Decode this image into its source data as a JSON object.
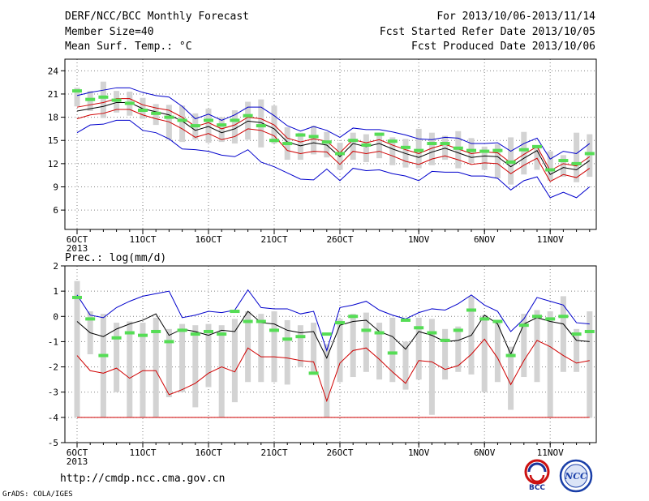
{
  "header": {
    "title": "DERF/NCC/BCC Monthly Forecast",
    "member_size": "Member Size=40",
    "variable": "Mean Surf. Temp.: °C",
    "forecast_period": "For 2013/10/06-2013/11/14",
    "start_date": "Fcst Started Refer Date 2013/10/05",
    "produced_date": "Fcst Produced Date 2013/10/06"
  },
  "footer": {
    "url": "http://cmdp.ncc.cma.gov.cn",
    "credit": "GrADS: COLA/IGES",
    "logo_left_text": "BCC",
    "logo_right_text": "NCC"
  },
  "colors": {
    "upper": "#0000cc",
    "lower": "#d00000",
    "ensemble": "#000000",
    "box": "#d3d3d3",
    "marker": "#55dd55",
    "grid": "#808080"
  },
  "chart_data": [
    {
      "type": "line",
      "name": "temperature",
      "ylabel": "",
      "ylim": [
        3.5,
        25.5
      ],
      "yticks": [
        6,
        9,
        12,
        15,
        18,
        21,
        24
      ],
      "x_tick_labels": [
        {
          "day": 1,
          "label": "6OCT",
          "sub": "2013"
        },
        {
          "day": 6,
          "label": "11OCT"
        },
        {
          "day": 11,
          "label": "16OCT"
        },
        {
          "day": 16,
          "label": "21OCT"
        },
        {
          "day": 21,
          "label": "26OCT"
        },
        {
          "day": 27,
          "label": "1NOV"
        },
        {
          "day": 32,
          "label": "6NOV"
        },
        {
          "day": 37,
          "label": "11NOV"
        }
      ],
      "x": [
        1,
        2,
        3,
        4,
        5,
        6,
        7,
        8,
        9,
        10,
        11,
        12,
        13,
        14,
        15,
        16,
        17,
        18,
        19,
        20,
        21,
        22,
        23,
        24,
        25,
        26,
        27,
        28,
        29,
        30,
        31,
        32,
        33,
        34,
        35,
        36,
        37,
        38,
        39,
        40
      ],
      "series": {
        "upper": [
          20.8,
          21.2,
          21.5,
          21.8,
          21.8,
          21.2,
          20.8,
          20.6,
          19.4,
          17.8,
          18.4,
          17.6,
          18.3,
          19.3,
          19.3,
          18.2,
          16.9,
          16.2,
          16.8,
          16.3,
          15.4,
          16.6,
          16.4,
          16.4,
          16.1,
          15.7,
          15.2,
          15.1,
          15.4,
          15.3,
          14.6,
          14.6,
          14.7,
          13.6,
          14.6,
          15.3,
          12.6,
          13.6,
          13.3,
          14.6
        ],
        "ensemble": [
          18.8,
          19.1,
          19.4,
          19.9,
          19.9,
          19.1,
          18.7,
          18.3,
          17.5,
          16.3,
          16.8,
          16.0,
          16.5,
          17.5,
          17.3,
          16.5,
          14.8,
          14.3,
          14.7,
          14.4,
          12.9,
          14.6,
          14.2,
          14.6,
          13.9,
          13.3,
          12.8,
          13.5,
          14.0,
          13.4,
          12.8,
          13.0,
          12.9,
          11.6,
          12.7,
          13.7,
          10.6,
          11.5,
          11.2,
          12.4
        ],
        "red_upper": [
          19.3,
          19.6,
          19.9,
          20.4,
          20.4,
          19.6,
          19.2,
          18.9,
          18.0,
          16.8,
          17.3,
          16.5,
          17.0,
          18.0,
          17.8,
          17.0,
          15.3,
          14.8,
          15.2,
          14.9,
          13.4,
          15.1,
          14.7,
          15.1,
          14.4,
          13.8,
          13.3,
          14.0,
          14.5,
          13.9,
          13.3,
          13.5,
          13.4,
          12.1,
          13.2,
          14.2,
          11.1,
          12.0,
          11.7,
          12.9
        ],
        "red_lower": [
          17.8,
          18.3,
          18.5,
          19.0,
          19.0,
          18.3,
          17.8,
          17.4,
          16.5,
          15.4,
          15.9,
          15.1,
          15.5,
          16.5,
          16.3,
          15.6,
          13.7,
          13.3,
          13.6,
          13.5,
          11.9,
          13.6,
          13.3,
          13.6,
          13.0,
          12.3,
          11.9,
          12.6,
          13.0,
          12.5,
          11.9,
          12.1,
          12.0,
          10.7,
          11.8,
          12.7,
          9.7,
          10.6,
          10.2,
          11.4
        ],
        "lower": [
          16.0,
          17.0,
          17.1,
          17.6,
          17.6,
          16.3,
          16.0,
          15.2,
          13.9,
          13.8,
          13.6,
          13.1,
          12.9,
          13.8,
          12.2,
          11.6,
          10.8,
          10.0,
          9.9,
          11.3,
          9.8,
          11.4,
          11.1,
          11.2,
          10.7,
          10.4,
          9.8,
          11.0,
          10.9,
          10.9,
          10.4,
          10.4,
          10.1,
          8.6,
          9.8,
          10.3,
          7.6,
          8.3,
          7.6,
          9.0
        ],
        "box_high": [
          21.8,
          21.4,
          22.6,
          21.4,
          21.3,
          20.5,
          19.7,
          19.6,
          19.5,
          18.5,
          19.1,
          18.0,
          18.9,
          20.0,
          20.3,
          19.5,
          16.7,
          16.0,
          16.9,
          16.1,
          14.7,
          16.0,
          15.8,
          16.0,
          15.4,
          15.2,
          16.5,
          16.0,
          15.6,
          16.2,
          15.3,
          14.2,
          14.5,
          15.4,
          16.1,
          14.4,
          13.6,
          13.1,
          16.0,
          15.8
        ],
        "box_low": [
          19.4,
          18.8,
          17.9,
          18.6,
          18.2,
          17.8,
          17.0,
          15.1,
          14.8,
          15.1,
          14.7,
          14.8,
          14.6,
          15.1,
          14.1,
          14.6,
          12.5,
          12.5,
          13.2,
          12.8,
          11.2,
          12.5,
          12.2,
          12.7,
          11.8,
          11.5,
          11.4,
          11.8,
          12.5,
          11.4,
          12.1,
          11.2,
          10.1,
          9.3,
          10.6,
          11.2,
          9.8,
          10.3,
          9.6,
          10.3
        ],
        "marker": [
          21.4,
          20.3,
          20.6,
          20.2,
          19.8,
          18.9,
          18.5,
          18.0,
          17.6,
          16.9,
          17.6,
          17.0,
          17.6,
          18.2,
          16.9,
          15.0,
          14.6,
          15.7,
          15.5,
          14.8,
          13.3,
          15.0,
          14.4,
          15.8,
          14.9,
          14.1,
          13.7,
          14.6,
          14.6,
          14.0,
          13.7,
          13.6,
          13.7,
          12.2,
          13.8,
          14.2,
          11.2,
          12.4,
          12.0,
          13.3
        ]
      }
    },
    {
      "type": "line",
      "name": "precipitation",
      "ylabel": "Prec.: log(mm/d)",
      "ylim": [
        -5,
        2
      ],
      "yticks": [
        -5,
        -4,
        -3,
        -2,
        -1,
        0,
        1,
        2
      ],
      "x_tick_labels": [
        {
          "day": 1,
          "label": "6OCT",
          "sub": "2013"
        },
        {
          "day": 6,
          "label": "11OCT"
        },
        {
          "day": 11,
          "label": "16OCT"
        },
        {
          "day": 16,
          "label": "21OCT"
        },
        {
          "day": 21,
          "label": "26OCT"
        },
        {
          "day": 27,
          "label": "1NOV"
        },
        {
          "day": 32,
          "label": "6NOV"
        },
        {
          "day": 37,
          "label": "11NOV"
        }
      ],
      "x": [
        1,
        2,
        3,
        4,
        5,
        6,
        7,
        8,
        9,
        10,
        11,
        12,
        13,
        14,
        15,
        16,
        17,
        18,
        19,
        20,
        21,
        22,
        23,
        24,
        25,
        26,
        27,
        28,
        29,
        30,
        31,
        32,
        33,
        34,
        35,
        36,
        37,
        38,
        39,
        40
      ],
      "series": {
        "upper": [
          0.85,
          0.05,
          -0.05,
          0.35,
          0.6,
          0.8,
          0.9,
          1.0,
          -0.05,
          0.05,
          0.2,
          0.15,
          0.25,
          1.05,
          0.35,
          0.3,
          0.3,
          0.1,
          0.2,
          -1.35,
          0.35,
          0.45,
          0.6,
          0.25,
          0.05,
          -0.1,
          0.15,
          0.3,
          0.25,
          0.5,
          0.85,
          0.45,
          0.2,
          -0.6,
          -0.1,
          0.75,
          0.6,
          0.45,
          -0.25,
          -0.3
        ],
        "ensemble": [
          -0.2,
          -0.65,
          -0.8,
          -0.5,
          -0.3,
          -0.15,
          0.1,
          -0.75,
          -0.5,
          -0.6,
          -0.75,
          -0.55,
          -0.6,
          0.2,
          -0.25,
          -0.3,
          -0.55,
          -0.65,
          -0.6,
          -1.65,
          -0.35,
          -0.2,
          -0.15,
          -0.6,
          -0.8,
          -1.3,
          -0.6,
          -0.75,
          -1.0,
          -0.95,
          -0.75,
          0.05,
          -0.3,
          -1.5,
          -0.3,
          -0.05,
          -0.2,
          -0.3,
          -0.95,
          -1.0
        ],
        "lower": [
          -1.55,
          -2.15,
          -2.25,
          -2.05,
          -2.45,
          -2.15,
          -2.15,
          -3.1,
          -2.9,
          -2.65,
          -2.25,
          -2.0,
          -2.2,
          -1.25,
          -1.6,
          -1.6,
          -1.65,
          -1.75,
          -1.8,
          -3.35,
          -1.85,
          -1.35,
          -1.25,
          -1.7,
          -2.2,
          -2.65,
          -1.75,
          -1.8,
          -2.1,
          -1.95,
          -1.5,
          -0.9,
          -1.65,
          -2.7,
          -1.75,
          -0.95,
          -1.2,
          -1.55,
          -1.85,
          -1.75
        ],
        "floor": -4.0,
        "box_high": [
          1.4,
          0.2,
          0.1,
          -0.25,
          -0.2,
          -0.25,
          -0.05,
          -0.5,
          -0.3,
          -0.35,
          -0.3,
          -0.35,
          -0.1,
          0.2,
          0.1,
          0.2,
          -0.15,
          -0.35,
          -0.25,
          -1.1,
          -0.1,
          0.1,
          0.15,
          -0.25,
          -0.05,
          -1.0,
          -0.05,
          -0.1,
          -0.5,
          -0.4,
          0.8,
          0.05,
          -0.2,
          -1.2,
          0.1,
          0.25,
          0.2,
          0.8,
          -0.5,
          0.2
        ],
        "box_low": [
          -4.0,
          -1.5,
          -4.0,
          -3.0,
          -4.0,
          -4.0,
          -4.0,
          -3.2,
          -3.0,
          -3.6,
          -2.8,
          -4.0,
          -3.4,
          -2.6,
          -2.6,
          -2.6,
          -2.7,
          -2.0,
          -2.2,
          -4.0,
          -2.6,
          -2.4,
          -2.2,
          -2.5,
          -2.6,
          -2.9,
          -2.5,
          -3.9,
          -2.5,
          -2.2,
          -2.3,
          -3.0,
          -2.6,
          -3.7,
          -2.4,
          -2.6,
          -4.0,
          -2.2,
          -2.2,
          -4.0
        ],
        "marker": [
          0.75,
          -0.1,
          -1.55,
          -0.85,
          -0.65,
          -0.75,
          -0.6,
          -1.0,
          -0.55,
          -0.7,
          -0.6,
          -0.7,
          0.2,
          -0.2,
          -0.2,
          -0.55,
          -0.9,
          -0.8,
          -2.25,
          -0.7,
          -0.25,
          0.0,
          -0.55,
          -0.65,
          -1.45,
          -0.15,
          -0.45,
          -0.65,
          -0.95,
          -0.55,
          0.25,
          -0.1,
          -0.2,
          -1.55,
          -0.35,
          0.0,
          -0.1,
          0.0,
          -0.7,
          -0.6
        ]
      }
    }
  ]
}
